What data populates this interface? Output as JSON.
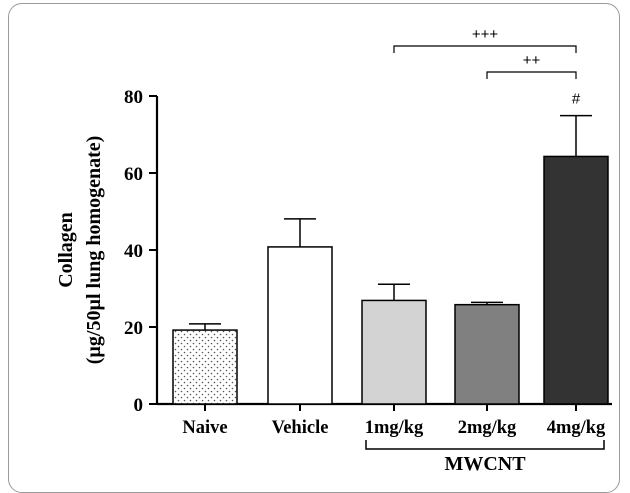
{
  "chart_data": {
    "type": "bar",
    "categories": [
      "Naive",
      "Vehicle",
      "1mg/kg",
      "2mg/kg",
      "4mg/kg"
    ],
    "values": [
      19.2,
      40.8,
      26.9,
      25.8,
      64.3
    ],
    "errors": [
      1.6,
      7.3,
      4.2,
      0.6,
      10.6
    ],
    "fills": [
      "dots",
      "#ffffff",
      "#d3d3d3",
      "#808080",
      "#333333"
    ],
    "ylabel": [
      "Collagen",
      "(µg/50µl lung homogenate)"
    ],
    "ylim": [
      0,
      80
    ],
    "yticks": [
      0,
      20,
      40,
      60,
      80
    ],
    "ytick_labels": [
      "0",
      "20",
      "40",
      "60",
      "80"
    ],
    "group_label": "MWCNT",
    "group_range": [
      2,
      4
    ],
    "annotations": [
      {
        "text": "#",
        "bar": 4
      },
      {
        "text": "+++",
        "from": 2,
        "to": 4
      },
      {
        "text": "++",
        "from": 3,
        "to": 4
      }
    ],
    "grid": false
  }
}
